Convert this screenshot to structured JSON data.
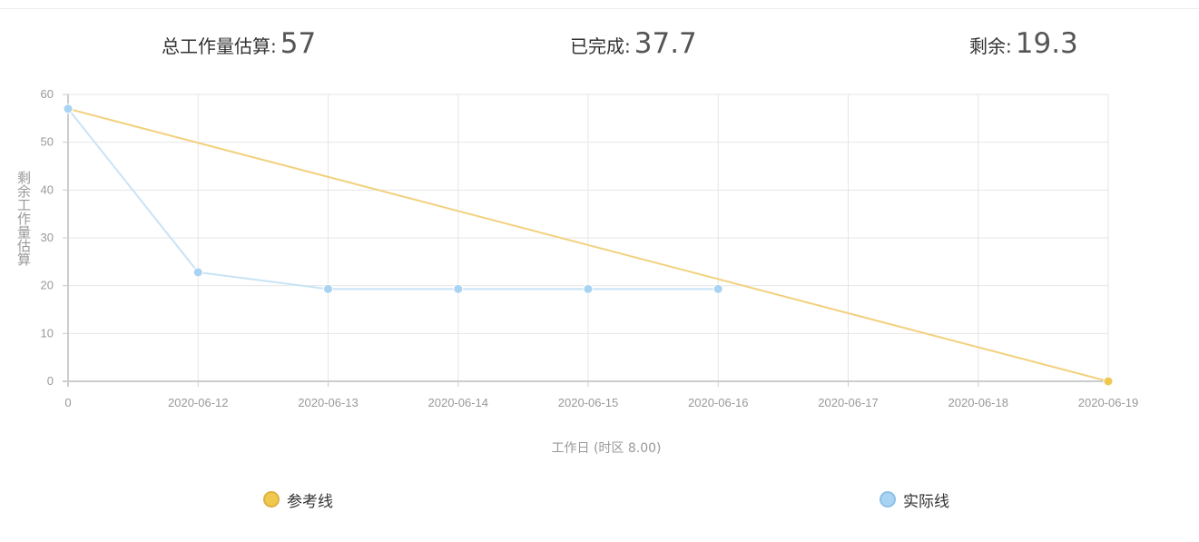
{
  "summary": {
    "total_label": "总工作量估算:",
    "total_value": "57",
    "done_label": "已完成:",
    "done_value": "37.7",
    "remaining_label": "剩余:",
    "remaining_value": "19.3"
  },
  "chart_data": {
    "type": "line",
    "ylabel": "剩余工作量估算",
    "xlabel": "工作日 (时区 8.00)",
    "categories": [
      "0",
      "2020-06-12",
      "2020-06-13",
      "2020-06-14",
      "2020-06-15",
      "2020-06-16",
      "2020-06-17",
      "2020-06-18",
      "2020-06-19"
    ],
    "ylim": [
      0,
      60
    ],
    "yticks": [
      0,
      10,
      20,
      30,
      40,
      50,
      60
    ],
    "grid": true,
    "legend_position": "bottom",
    "series": [
      {
        "name": "参考线",
        "color": "#f0c850",
        "line_color": "#f2d17e",
        "points": [
          [
            0,
            57
          ],
          [
            8,
            0
          ]
        ]
      },
      {
        "name": "实际线",
        "color": "#a9d3f2",
        "line_color": "#c8e3f6",
        "points": [
          [
            0,
            57
          ],
          [
            1,
            22.8
          ],
          [
            2,
            19.3
          ],
          [
            3,
            19.3
          ],
          [
            4,
            19.3
          ],
          [
            5,
            19.3
          ]
        ]
      }
    ]
  }
}
